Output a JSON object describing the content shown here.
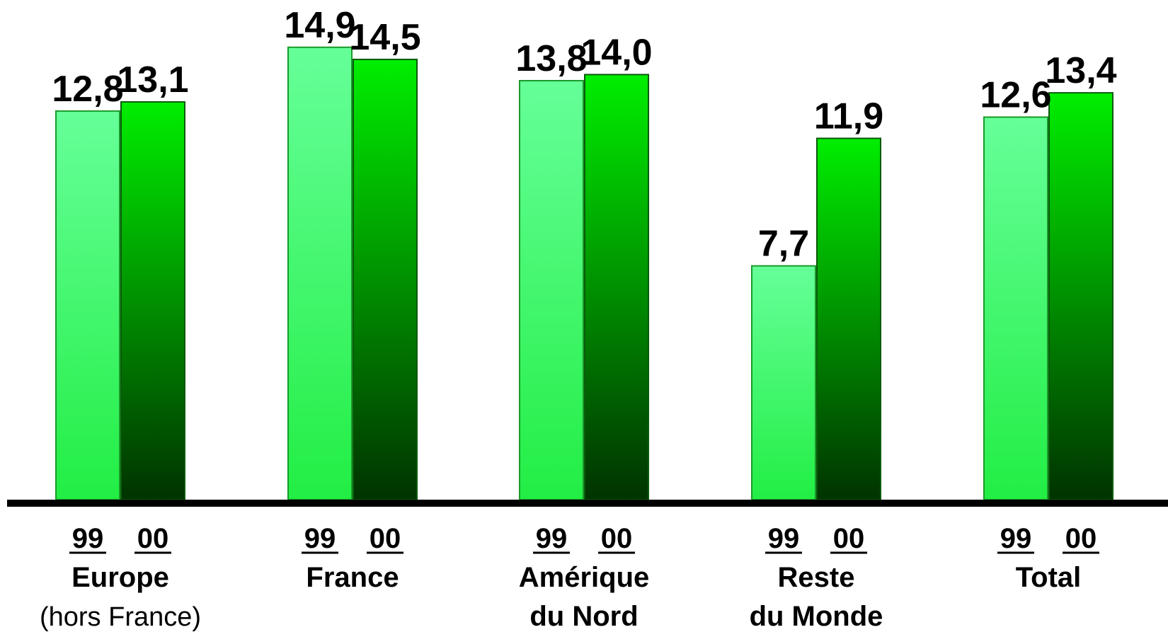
{
  "chart_data": {
    "type": "bar",
    "categories": [
      [
        "Europe",
        "(hors France)"
      ],
      [
        "France"
      ],
      [
        "Amérique",
        "du Nord"
      ],
      [
        "Reste",
        "du Monde"
      ],
      [
        "Total"
      ]
    ],
    "series": [
      {
        "year_label": "99",
        "values": [
          12.8,
          14.9,
          13.8,
          7.7,
          12.6
        ],
        "value_labels": [
          "12,8",
          "14,9",
          "13,8",
          "7,7",
          "12,6"
        ],
        "colors": {
          "top": "#66ff99",
          "bottom": "#22ee44"
        }
      },
      {
        "year_label": "00",
        "values": [
          13.1,
          14.5,
          14.0,
          11.9,
          13.4
        ],
        "value_labels": [
          "13,1",
          "14,5",
          "14,0",
          "11,9",
          "13,4"
        ],
        "colors": {
          "top": "#00ee00",
          "bottom": "#003300"
        }
      }
    ],
    "title": "",
    "xlabel": "",
    "ylabel": "",
    "ylim": [
      0,
      16
    ],
    "grid": false,
    "legend": "none"
  }
}
